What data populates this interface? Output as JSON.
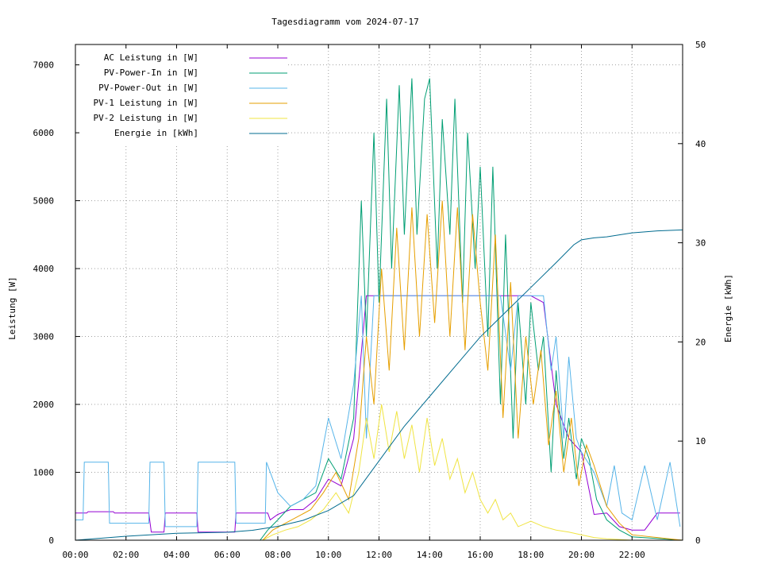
{
  "chart_data": {
    "type": "line",
    "title": "Tagesdiagramm vom 2024-07-17",
    "xlabel": "",
    "ylabel": "Leistung [W]",
    "y2label": "Energie [kWh]",
    "xlim": [
      "00:00",
      "24:00"
    ],
    "ylim": [
      0,
      7300
    ],
    "y2lim": [
      0,
      50
    ],
    "x_ticks": [
      "00:00",
      "02:00",
      "04:00",
      "06:00",
      "08:00",
      "10:00",
      "12:00",
      "14:00",
      "16:00",
      "18:00",
      "20:00",
      "22:00"
    ],
    "y_ticks": [
      0,
      1000,
      2000,
      3000,
      4000,
      5000,
      6000,
      7000
    ],
    "y2_ticks": [
      0,
      10,
      20,
      30,
      40,
      50
    ],
    "grid": true,
    "legend_position": "top-left",
    "series": [
      {
        "name": "AC Leistung in [W]",
        "axis": "left",
        "color": "#9400d3",
        "x": [
          0,
          0.45,
          0.5,
          1.5,
          1.55,
          2.9,
          3.0,
          3.5,
          3.55,
          4.8,
          4.85,
          6.3,
          6.35,
          7.6,
          7.7,
          8,
          8.5,
          9,
          9.5,
          10,
          10.5,
          11,
          11.5,
          12,
          13,
          14,
          15,
          16,
          16.8,
          17.5,
          18,
          18.5,
          19,
          19.5,
          20,
          20.5,
          21,
          21.5,
          22,
          22.5,
          23,
          23.5,
          23.9
        ],
        "y": [
          400,
          400,
          420,
          420,
          400,
          400,
          120,
          120,
          400,
          400,
          120,
          120,
          400,
          400,
          300,
          380,
          450,
          450,
          600,
          900,
          800,
          1500,
          3600,
          3600,
          3600,
          3600,
          3600,
          3600,
          3600,
          3600,
          3600,
          3500,
          2000,
          1500,
          1300,
          380,
          400,
          200,
          150,
          150,
          400,
          400,
          400
        ]
      },
      {
        "name": "PV-Power-In in [W]",
        "axis": "left",
        "color": "#009e73",
        "x": [
          0,
          7.3,
          7.6,
          8,
          8.5,
          9,
          9.5,
          10,
          10.5,
          11,
          11.3,
          11.5,
          11.8,
          12,
          12.3,
          12.5,
          12.8,
          13,
          13.3,
          13.5,
          13.8,
          14,
          14.3,
          14.5,
          14.8,
          15,
          15.3,
          15.5,
          15.8,
          16,
          16.3,
          16.5,
          16.8,
          17,
          17.3,
          17.5,
          17.8,
          18,
          18.3,
          18.5,
          18.8,
          19,
          19.3,
          19.5,
          19.8,
          20,
          20.3,
          20.6,
          21,
          21.5,
          22,
          24
        ],
        "y": [
          0,
          0,
          150,
          300,
          500,
          600,
          700,
          1200,
          900,
          1800,
          5000,
          3000,
          6000,
          3500,
          6500,
          4000,
          6700,
          4500,
          6800,
          4500,
          6500,
          6800,
          4000,
          6200,
          4500,
          6500,
          3500,
          6000,
          4000,
          5500,
          3000,
          5500,
          2000,
          4500,
          1500,
          3500,
          2000,
          3500,
          2500,
          3000,
          1000,
          2500,
          1200,
          1800,
          900,
          1500,
          1200,
          600,
          300,
          150,
          50,
          0
        ]
      },
      {
        "name": "PV-Power-Out in [W]",
        "axis": "left",
        "color": "#56b4e9",
        "x": [
          0,
          0.3,
          0.35,
          1.3,
          1.35,
          2.9,
          2.95,
          3.5,
          3.55,
          4.8,
          4.85,
          6.3,
          6.35,
          7.5,
          7.55,
          8.0,
          8.5,
          9.0,
          9.5,
          10,
          10.5,
          11,
          11.3,
          11.5,
          11.8,
          12,
          13,
          14,
          15,
          16,
          16.8,
          17.2,
          17.5,
          18,
          18.5,
          18.8,
          19,
          19.3,
          19.5,
          19.8,
          20,
          20.5,
          21,
          21.3,
          21.6,
          22,
          22.5,
          23,
          23.5,
          23.9
        ],
        "y": [
          300,
          300,
          1150,
          1150,
          250,
          250,
          1150,
          1150,
          200,
          200,
          1150,
          1150,
          250,
          250,
          1150,
          700,
          500,
          600,
          800,
          1800,
          1200,
          2300,
          3600,
          1500,
          3600,
          3600,
          3600,
          3600,
          3600,
          3600,
          3600,
          2500,
          3600,
          3600,
          3600,
          2500,
          3000,
          1500,
          2700,
          1500,
          1300,
          1000,
          500,
          1100,
          400,
          300,
          1100,
          300,
          1150,
          200
        ]
      },
      {
        "name": "PV-1 Leistung in [W]",
        "axis": "left",
        "color": "#e69f00",
        "x": [
          0,
          7.4,
          7.8,
          8.3,
          8.8,
          9.3,
          9.8,
          10.3,
          10.8,
          11.2,
          11.5,
          11.8,
          12.1,
          12.4,
          12.7,
          13,
          13.3,
          13.6,
          13.9,
          14.2,
          14.5,
          14.8,
          15.1,
          15.4,
          15.7,
          16,
          16.3,
          16.6,
          16.9,
          17.2,
          17.5,
          17.8,
          18.1,
          18.4,
          18.7,
          19,
          19.3,
          19.6,
          19.9,
          20.2,
          20.5,
          21,
          21.5,
          22,
          24
        ],
        "y": [
          0,
          0,
          150,
          250,
          350,
          450,
          700,
          1000,
          600,
          1500,
          3000,
          2000,
          4000,
          2500,
          4600,
          2800,
          4900,
          3000,
          4800,
          3200,
          5000,
          3000,
          4900,
          2800,
          4800,
          3500,
          2500,
          4500,
          1800,
          3800,
          1500,
          3000,
          2000,
          2800,
          1400,
          2200,
          1000,
          1800,
          800,
          1400,
          1100,
          500,
          250,
          80,
          0
        ]
      },
      {
        "name": "PV-2 Leistung in [W]",
        "axis": "left",
        "color": "#f0e442",
        "x": [
          0,
          7.4,
          7.8,
          8.3,
          8.8,
          9.3,
          9.8,
          10.3,
          10.8,
          11.2,
          11.5,
          11.8,
          12.1,
          12.4,
          12.7,
          13,
          13.3,
          13.6,
          13.9,
          14.2,
          14.5,
          14.8,
          15.1,
          15.4,
          15.7,
          16,
          16.3,
          16.6,
          16.9,
          17.2,
          17.5,
          18,
          18.5,
          19,
          19.5,
          20,
          20.5,
          21,
          21.5,
          22,
          24
        ],
        "y": [
          0,
          0,
          80,
          150,
          200,
          300,
          450,
          700,
          400,
          1000,
          1800,
          1200,
          2000,
          1300,
          1900,
          1200,
          1700,
          1000,
          1800,
          1100,
          1500,
          900,
          1200,
          700,
          1000,
          600,
          400,
          600,
          300,
          400,
          200,
          280,
          200,
          150,
          120,
          80,
          40,
          20,
          10,
          0,
          0
        ]
      },
      {
        "name": "Energie in [kWh]",
        "axis": "right",
        "color": "#006b8f",
        "x": [
          0,
          2,
          4,
          6,
          7,
          8,
          9,
          10,
          11,
          12,
          13,
          14,
          15,
          16,
          17,
          18,
          19,
          19.7,
          20,
          20.5,
          21,
          22,
          23,
          24
        ],
        "y": [
          0,
          0.4,
          0.7,
          0.8,
          1.0,
          1.4,
          2.0,
          3.0,
          4.5,
          8.0,
          11.5,
          14.5,
          17.5,
          20.5,
          23.0,
          25.5,
          28.0,
          29.8,
          30.3,
          30.5,
          30.6,
          31.0,
          31.2,
          31.3
        ]
      }
    ]
  }
}
